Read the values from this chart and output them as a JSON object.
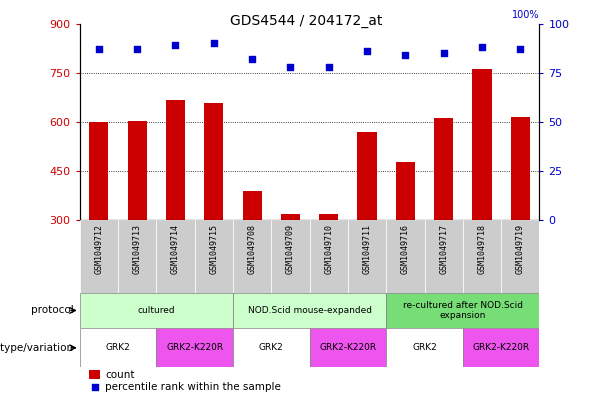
{
  "title": "GDS4544 / 204172_at",
  "samples": [
    "GSM1049712",
    "GSM1049713",
    "GSM1049714",
    "GSM1049715",
    "GSM1049708",
    "GSM1049709",
    "GSM1049710",
    "GSM1049711",
    "GSM1049716",
    "GSM1049717",
    "GSM1049718",
    "GSM1049719"
  ],
  "counts": [
    600,
    602,
    668,
    658,
    390,
    320,
    318,
    570,
    478,
    612,
    760,
    615
  ],
  "percentiles": [
    87,
    87,
    89,
    90,
    82,
    78,
    78,
    86,
    84,
    85,
    88,
    87
  ],
  "ylim_left": [
    300,
    900
  ],
  "ylim_right": [
    0,
    100
  ],
  "yticks_left": [
    300,
    450,
    600,
    750,
    900
  ],
  "yticks_right": [
    0,
    25,
    50,
    75,
    100
  ],
  "bar_color": "#cc0000",
  "dot_color": "#0000cc",
  "protocol_groups": [
    {
      "label": "cultured",
      "start": 0,
      "end": 4,
      "color": "#ccffcc"
    },
    {
      "label": "NOD.Scid mouse-expanded",
      "start": 4,
      "end": 8,
      "color": "#ccffcc"
    },
    {
      "label": "re-cultured after NOD.Scid\nexpansion",
      "start": 8,
      "end": 12,
      "color": "#77dd77"
    }
  ],
  "genotype_groups": [
    {
      "label": "GRK2",
      "start": 0,
      "end": 2,
      "color": "#ffffff"
    },
    {
      "label": "GRK2-K220R",
      "start": 2,
      "end": 4,
      "color": "#ee55ee"
    },
    {
      "label": "GRK2",
      "start": 4,
      "end": 6,
      "color": "#ffffff"
    },
    {
      "label": "GRK2-K220R",
      "start": 6,
      "end": 8,
      "color": "#ee55ee"
    },
    {
      "label": "GRK2",
      "start": 8,
      "end": 10,
      "color": "#ffffff"
    },
    {
      "label": "GRK2-K220R",
      "start": 10,
      "end": 12,
      "color": "#ee55ee"
    }
  ],
  "sample_bg_color": "#cccccc",
  "bg_color": "#ffffff",
  "tick_color_left": "#cc0000",
  "tick_color_right": "#0000cc",
  "pct100_label": "100%"
}
